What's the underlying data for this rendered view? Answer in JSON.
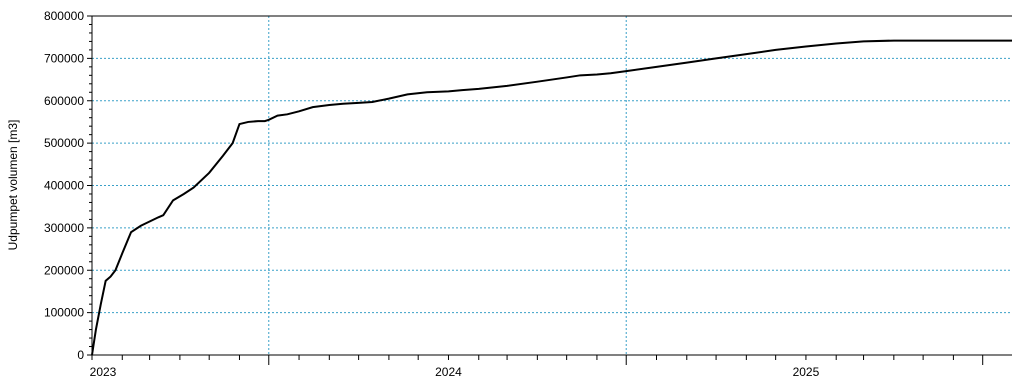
{
  "chart_data": {
    "type": "line",
    "title": "",
    "xlabel": "",
    "ylabel": "Udpumpet volumen [m3]",
    "ylim": [
      0,
      800000
    ],
    "xlim": [
      "2023-01-01",
      "2025-07-31"
    ],
    "grid": true,
    "y_ticks": [
      "0",
      "100000",
      "200000",
      "300000",
      "400000",
      "500000",
      "600000",
      "700000",
      "800000"
    ],
    "x_ticks": [
      "2023",
      "2024",
      "2025"
    ],
    "colors": {
      "series": "#000000",
      "grid": "#3aa0c8"
    },
    "series": [
      {
        "x": [
          "2023-01-01",
          "2023-01-05",
          "2023-01-10",
          "2023-01-15",
          "2023-01-20",
          "2023-01-25",
          "2023-02-01",
          "2023-02-10",
          "2023-02-20",
          "2023-03-01",
          "2023-03-10",
          "2023-03-15",
          "2023-03-25",
          "2023-04-05",
          "2023-04-15",
          "2023-05-01",
          "2023-05-15",
          "2023-05-25",
          "2023-06-01",
          "2023-06-10",
          "2023-06-20",
          "2023-06-27",
          "2023-07-01",
          "2023-07-10",
          "2023-07-20",
          "2023-08-01",
          "2023-08-15",
          "2023-09-01",
          "2023-09-15",
          "2023-10-01",
          "2023-10-15",
          "2023-11-01",
          "2023-11-20",
          "2023-12-10",
          "2024-01-01",
          "2024-01-15",
          "2024-02-01",
          "2024-03-01",
          "2024-04-01",
          "2024-05-01",
          "2024-05-15",
          "2024-06-01",
          "2024-06-15",
          "2024-07-01",
          "2024-08-01",
          "2024-09-01",
          "2024-10-01",
          "2024-11-01",
          "2024-12-01",
          "2025-01-01",
          "2025-02-01",
          "2025-03-01",
          "2025-04-01",
          "2025-05-01",
          "2025-05-15",
          "2025-06-01",
          "2025-07-31"
        ],
        "y": [
          0,
          60000,
          120000,
          175000,
          185000,
          200000,
          240000,
          290000,
          305000,
          315000,
          325000,
          330000,
          365000,
          380000,
          395000,
          430000,
          470000,
          500000,
          545000,
          550000,
          552000,
          552000,
          555000,
          565000,
          568000,
          575000,
          585000,
          590000,
          593000,
          595000,
          597000,
          605000,
          615000,
          620000,
          622000,
          625000,
          628000,
          635000,
          645000,
          655000,
          660000,
          662000,
          665000,
          670000,
          680000,
          690000,
          700000,
          710000,
          720000,
          728000,
          735000,
          740000,
          742000,
          742000,
          742000,
          742000,
          742000
        ]
      }
    ]
  }
}
